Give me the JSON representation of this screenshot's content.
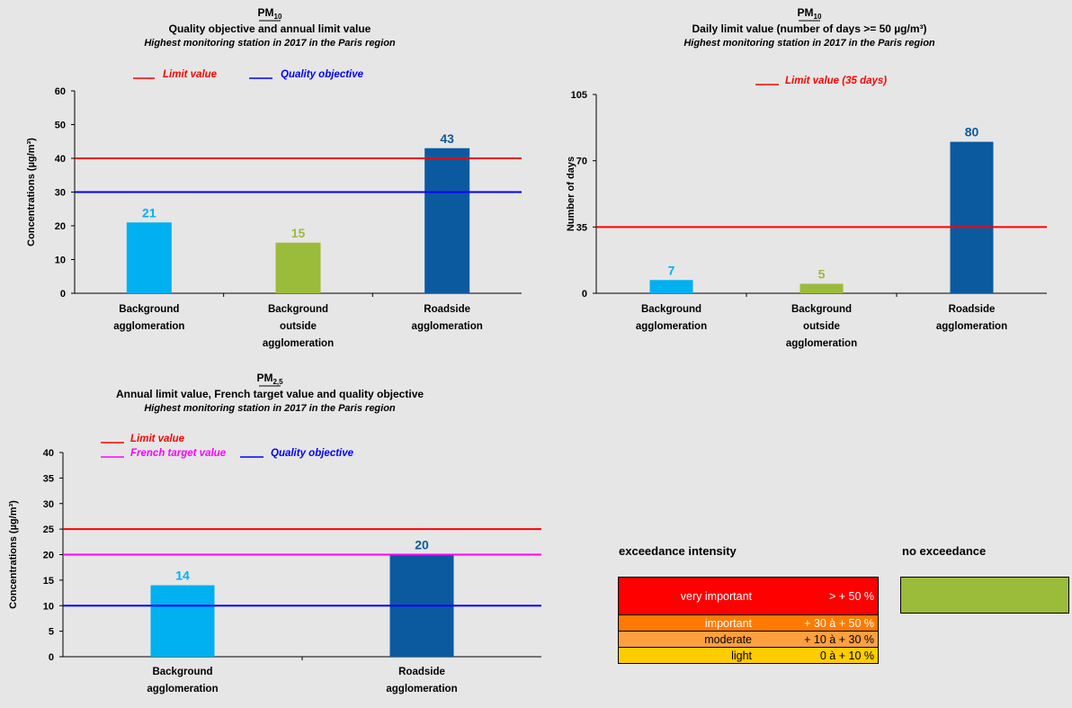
{
  "chart_data": [
    {
      "type": "bar",
      "title": "PM",
      "title_sub": "10",
      "subtitle": "Quality objective and annual limit value",
      "subtitle2": "Highest monitoring station in 2017 in the Paris region",
      "ylabel": "Concentrations (µg/m³)",
      "ylim": [
        0,
        60
      ],
      "yticks": [
        0,
        10,
        20,
        30,
        40,
        50,
        60
      ],
      "categories": [
        "Background|agglomeration",
        "Background|outside|agglomeration",
        "Roadside|agglomeration"
      ],
      "values": [
        21,
        15,
        43
      ],
      "colors": [
        "#00b0f0",
        "#9bbb3b",
        "#0b5aa0"
      ],
      "reference_lines": [
        {
          "name": "Limit value",
          "value": 40,
          "color": "#ff0000"
        },
        {
          "name": "Quality objective",
          "value": 30,
          "color": "#0000ff"
        }
      ]
    },
    {
      "type": "bar",
      "title": "PM",
      "title_sub": "10",
      "subtitle": "Daily limit value (number of days >= 50 µg/m³)",
      "subtitle2": "Highest monitoring station in 2017 in the Paris region",
      "ylabel": "Number of days",
      "ylim": [
        0,
        105
      ],
      "yticks": [
        0,
        35,
        70,
        105
      ],
      "categories": [
        "Background|agglomeration",
        "Background|outside|agglomeration",
        "Roadside|agglomeration"
      ],
      "values": [
        7,
        5,
        80
      ],
      "colors": [
        "#00b0f0",
        "#9bbb3b",
        "#0b5aa0"
      ],
      "reference_lines": [
        {
          "name": "Limit value (35 days)",
          "value": 35,
          "color": "#ff0000"
        }
      ]
    },
    {
      "type": "bar",
      "title": "PM",
      "title_sub": "2,5",
      "subtitle": "Annual limit value, French target value and quality objective",
      "subtitle2": "Highest monitoring station in 2017 in the Paris region",
      "ylabel": "Concentrations (µg/m³)",
      "ylim": [
        0,
        40
      ],
      "yticks": [
        0,
        5,
        10,
        15,
        20,
        25,
        30,
        35,
        40
      ],
      "categories": [
        "Background|agglomeration",
        "Roadside|agglomeration"
      ],
      "values": [
        14,
        20
      ],
      "colors": [
        "#00b0f0",
        "#0b5aa0"
      ],
      "reference_lines": [
        {
          "name": "Limit value",
          "value": 25,
          "color": "#ff0000"
        },
        {
          "name": "French target value",
          "value": 20,
          "color": "#ff00ff"
        },
        {
          "name": "Quality objective",
          "value": 10,
          "color": "#0000ff"
        }
      ]
    }
  ],
  "legend": {
    "intensity_title": "exceedance intensity",
    "no_exceedance_title": "no exceedance",
    "no_exceedance_color": "#9bbb3b",
    "levels": [
      {
        "name": "very important",
        "range": "> + 50 %",
        "color": "#ff0000"
      },
      {
        "name": "important",
        "range": "+ 30 à + 50 %",
        "color": "#ff7a00"
      },
      {
        "name": "moderate",
        "range": "+ 10 à + 30 %",
        "color": "#ffa040"
      },
      {
        "name": "light",
        "range": "0  à + 10 %",
        "color": "#ffcc00"
      }
    ]
  }
}
